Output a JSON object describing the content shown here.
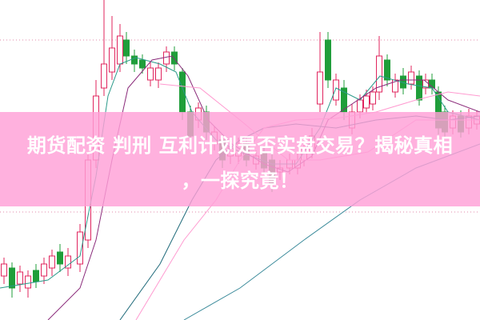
{
  "article": {
    "title_line1": "期货配资 判刑 互利计划是否实盘交易？揭秘真相",
    "title_line2": "，一探究竟！"
  },
  "colors": {
    "up_candle": "#e0245e",
    "down_candle": "#1f9e3a",
    "banner": "#ffa0d7",
    "ma_short": "#2a9a8a",
    "ma_mid": "#8a2a7a",
    "ma_long": "#1f6a7a",
    "ma_slow": "#ff9ad0"
  }
}
